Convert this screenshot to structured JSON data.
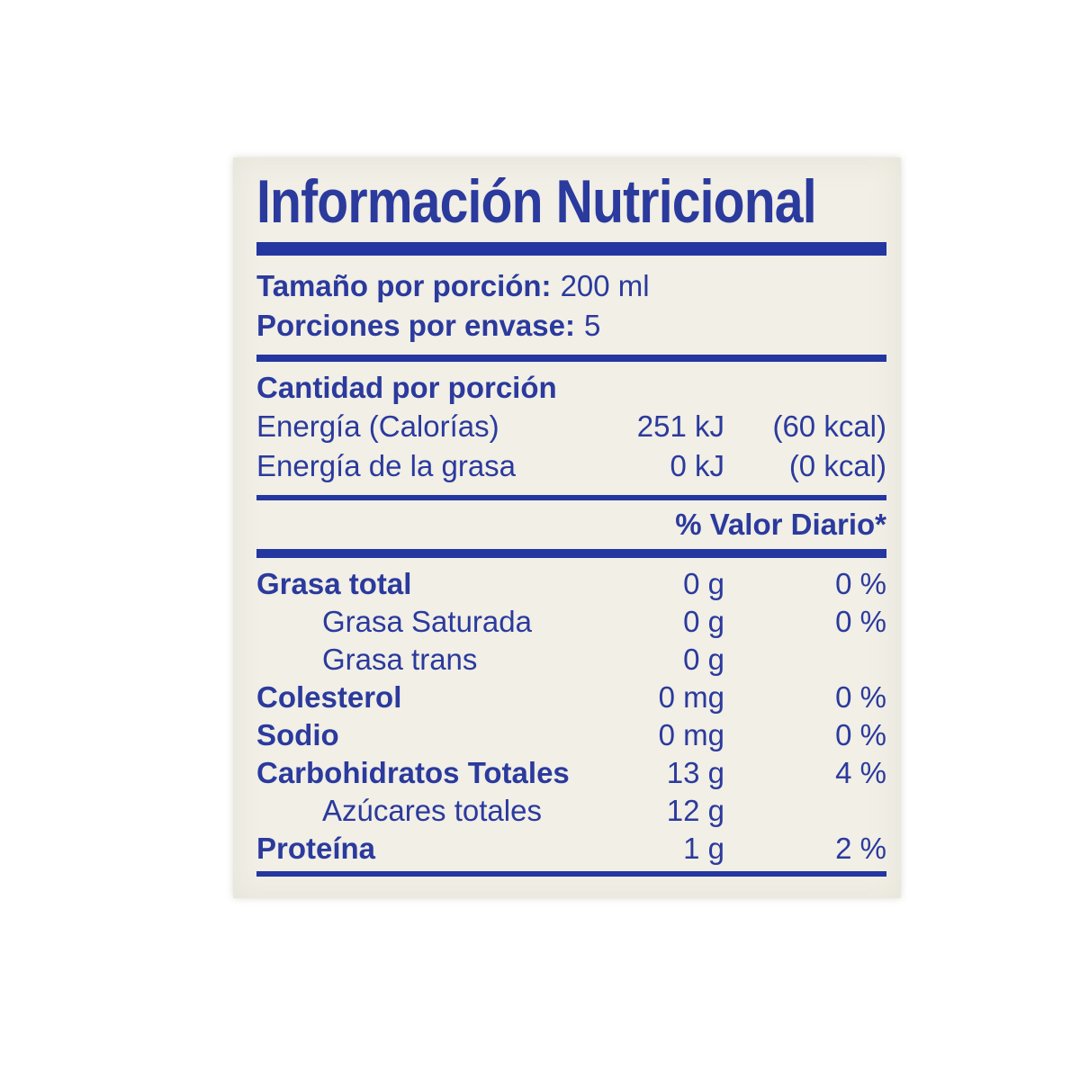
{
  "label": {
    "title": "Información Nutricional",
    "serving": [
      {
        "name": "Tamaño por porción:",
        "value": "200 ml"
      },
      {
        "name": "Porciones por envase:",
        "value": "5"
      }
    ],
    "amount_header": "Cantidad por porción",
    "energy_rows": [
      {
        "name": "Energía (Calorías)",
        "value": "251 kJ",
        "alt": "(60 kcal)"
      },
      {
        "name": "Energía de la grasa",
        "value": "0 kJ",
        "alt": "(0 kcal)"
      }
    ],
    "daily_value_header": "% Valor Diario*",
    "nutrients": [
      {
        "name": "Grasa total",
        "value": "0 g",
        "dv": "0 %"
      },
      {
        "name": "Grasa Saturada",
        "value": "0 g",
        "dv": "0 %"
      },
      {
        "name": "Grasa trans",
        "value": "0 g",
        "dv": ""
      },
      {
        "name": "Colesterol",
        "value": "0 mg",
        "dv": "0 %"
      },
      {
        "name": "Sodio",
        "value": "0 mg",
        "dv": "0 %"
      },
      {
        "name": "Carbohidratos Totales",
        "value": "13 g",
        "dv": "4 %"
      },
      {
        "name": "Azúcares totales",
        "value": "12 g",
        "dv": ""
      },
      {
        "name": "Proteína",
        "value": "1 g",
        "dv": "2 %"
      }
    ],
    "colors": {
      "ink": "#2b3a9d",
      "rule": "#2436a0",
      "panel": "#f1efe6"
    }
  }
}
